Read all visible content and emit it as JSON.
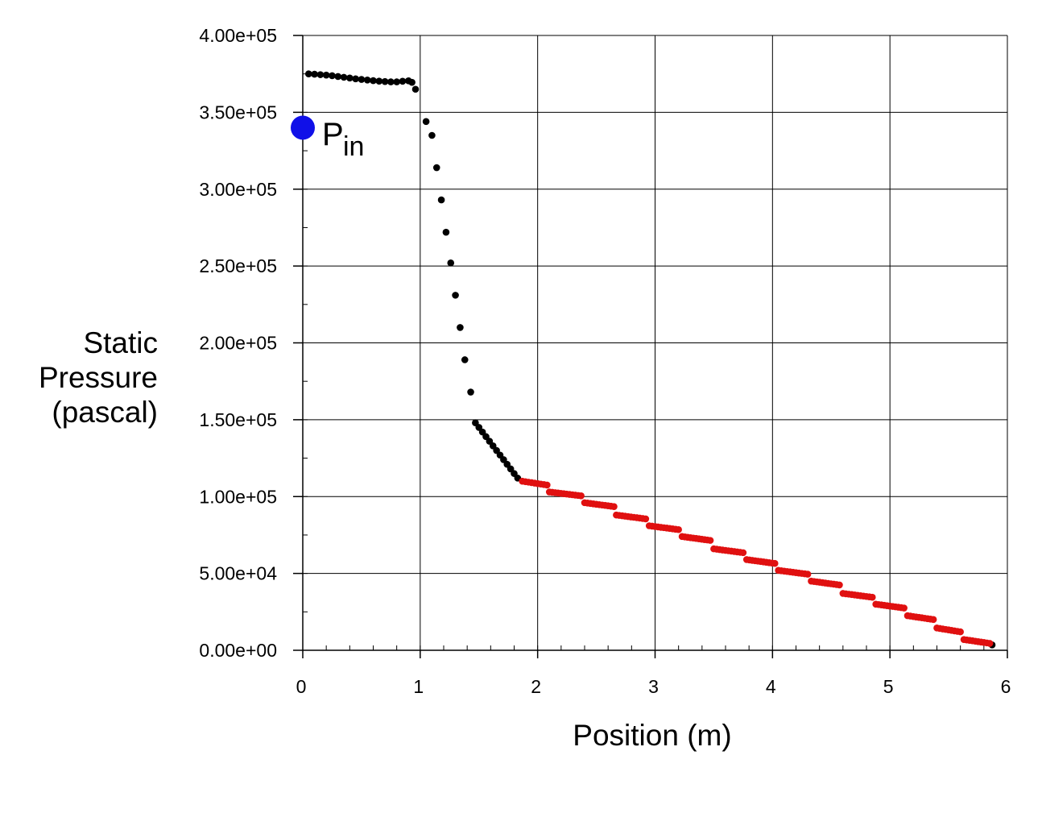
{
  "chart_data": {
    "type": "scatter",
    "xlabel": "Position (m)",
    "ylabel_lines": [
      "Static",
      "Pressure",
      "(pascal)"
    ],
    "xlim": [
      0,
      6
    ],
    "ylim": [
      0,
      400000
    ],
    "x_ticks": [
      0,
      1,
      2,
      3,
      4,
      5,
      6
    ],
    "x_tick_labels": [
      "0",
      "1",
      "2",
      "3",
      "4",
      "5",
      "6"
    ],
    "y_ticks": [
      0,
      50000,
      100000,
      150000,
      200000,
      250000,
      300000,
      350000,
      400000
    ],
    "y_tick_labels": [
      "0.00e+00",
      "5.00e+04",
      "1.00e+05",
      "1.50e+05",
      "2.00e+05",
      "2.50e+05",
      "3.00e+05",
      "3.50e+05",
      "4.00e+05"
    ],
    "grid": true,
    "annotation": {
      "text": "P",
      "subscript": "in",
      "x": 0,
      "y": 340000,
      "marker_color": "#1010e8"
    },
    "series": [
      {
        "color": "#000000",
        "points": [
          [
            0.05,
            375000
          ],
          [
            0.1,
            374800
          ],
          [
            0.15,
            374500
          ],
          [
            0.2,
            374200
          ],
          [
            0.25,
            373800
          ],
          [
            0.3,
            373300
          ],
          [
            0.35,
            372800
          ],
          [
            0.4,
            372300
          ],
          [
            0.45,
            371800
          ],
          [
            0.5,
            371400
          ],
          [
            0.55,
            371000
          ],
          [
            0.6,
            370600
          ],
          [
            0.65,
            370300
          ],
          [
            0.7,
            370000
          ],
          [
            0.75,
            369800
          ],
          [
            0.8,
            369800
          ],
          [
            0.85,
            370200
          ],
          [
            0.9,
            370500
          ],
          [
            0.93,
            369500
          ],
          [
            0.96,
            365000
          ],
          [
            1.05,
            344000
          ],
          [
            1.1,
            335000
          ],
          [
            1.14,
            314000
          ],
          [
            1.18,
            293000
          ],
          [
            1.22,
            272000
          ],
          [
            1.26,
            252000
          ],
          [
            1.3,
            231000
          ],
          [
            1.34,
            210000
          ],
          [
            1.38,
            189000
          ],
          [
            1.43,
            168000
          ],
          [
            1.47,
            148000
          ],
          [
            1.5,
            145000
          ],
          [
            1.53,
            142000
          ],
          [
            1.56,
            139000
          ],
          [
            1.59,
            136000
          ],
          [
            1.62,
            133000
          ],
          [
            1.65,
            130000
          ],
          [
            1.68,
            127000
          ],
          [
            1.71,
            124000
          ],
          [
            1.74,
            121000
          ],
          [
            1.77,
            118000
          ],
          [
            1.8,
            115000
          ],
          [
            1.83,
            112000
          ],
          [
            5.87,
            3500
          ]
        ]
      },
      {
        "color": "#e01010",
        "segments": [
          [
            1.87,
            2.08,
            110000
          ],
          [
            2.1,
            2.37,
            103000
          ],
          [
            2.4,
            2.65,
            96000
          ],
          [
            2.67,
            2.92,
            88000
          ],
          [
            2.95,
            3.2,
            81000
          ],
          [
            3.23,
            3.47,
            74000
          ],
          [
            3.5,
            3.75,
            66000
          ],
          [
            3.78,
            4.02,
            59000
          ],
          [
            4.05,
            4.3,
            52000
          ],
          [
            4.33,
            4.57,
            45000
          ],
          [
            4.6,
            4.85,
            37000
          ],
          [
            4.88,
            5.12,
            30000
          ],
          [
            5.15,
            5.37,
            22500
          ],
          [
            5.4,
            5.6,
            14500
          ],
          [
            5.63,
            5.85,
            7000
          ]
        ]
      }
    ]
  }
}
